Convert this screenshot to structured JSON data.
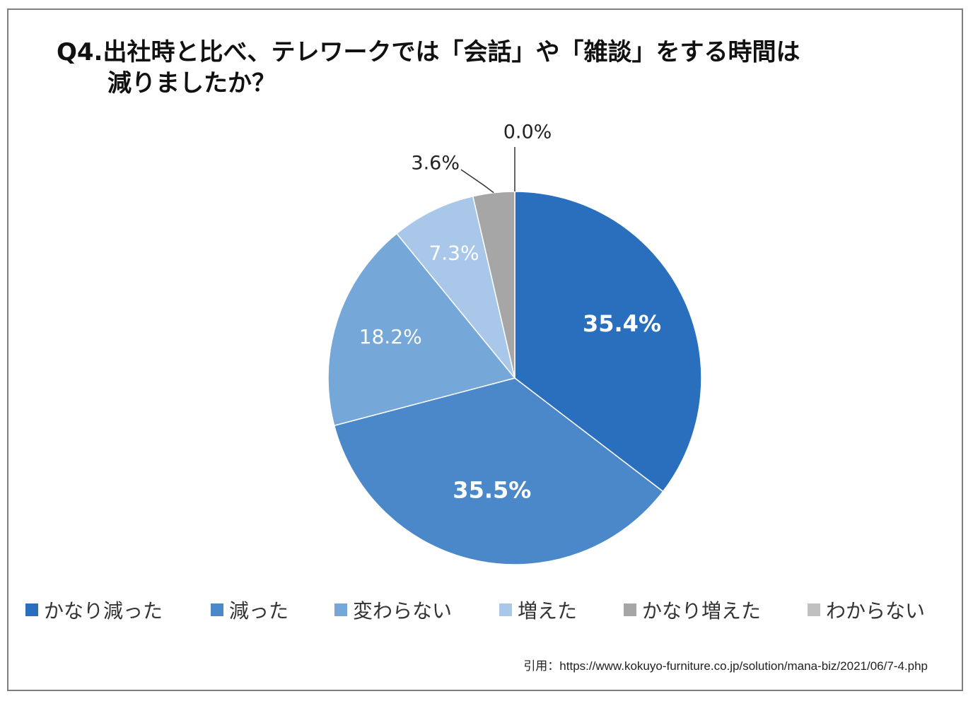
{
  "title_line1": "Q4.出社時と比べ、テレワークでは「会話」や「雑談」をする時間は",
  "title_line2": "減りましたか？",
  "chart_data": {
    "type": "pie",
    "title": "Q4.出社時と比べ、テレワークでは「会話」や「雑談」をする時間は減りましたか？",
    "categories": [
      "かなり減った",
      "減った",
      "変わらない",
      "増えた",
      "かなり増えた",
      "わからない"
    ],
    "values": [
      35.4,
      35.5,
      18.2,
      7.3,
      3.6,
      0.0
    ],
    "labels": [
      "35.4%",
      "35.5%",
      "18.2%",
      "7.3%",
      "3.6%",
      "0.0%"
    ],
    "colors": [
      "#2a6fbe",
      "#4a88c9",
      "#75a7d8",
      "#a9c8e9",
      "#a6a6a6",
      "#c0c0c0"
    ],
    "label_colors": [
      "#ffffff",
      "#ffffff",
      "#ffffff",
      "#ffffff",
      "#222222",
      "#222222"
    ],
    "label_bold": [
      true,
      true,
      false,
      false,
      false,
      false
    ],
    "outside_labels": [
      false,
      false,
      false,
      false,
      true,
      true
    ],
    "legend_placement": "bottom"
  },
  "citation": "引用：https://www.kokuyo-furniture.co.jp/solution/mana-biz/2021/06/7-4.php"
}
